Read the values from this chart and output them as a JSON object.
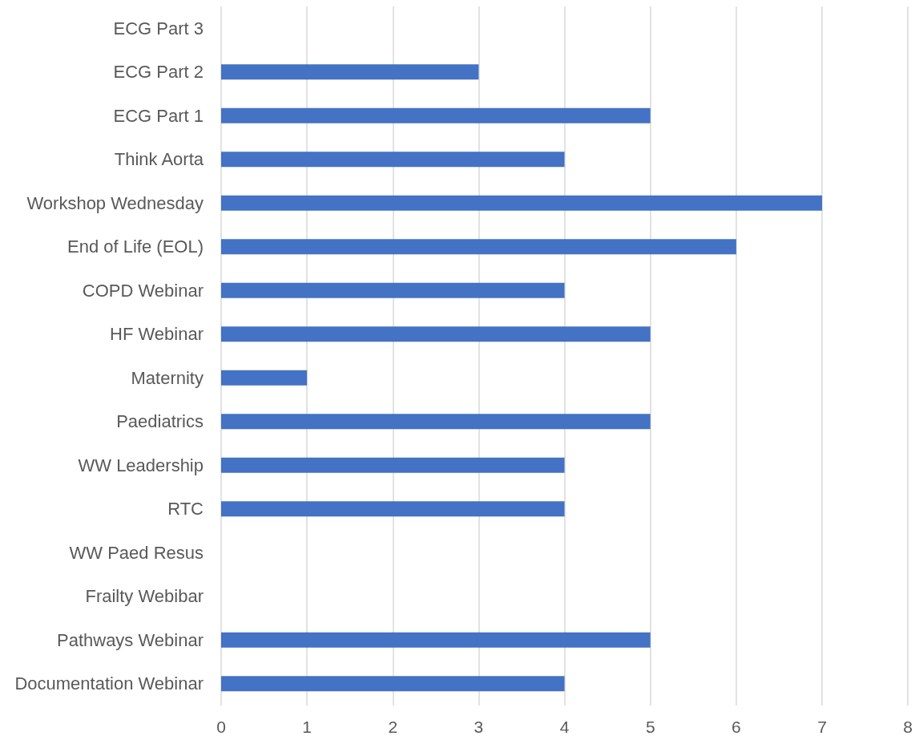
{
  "chart_data": {
    "type": "bar",
    "orientation": "horizontal",
    "categories": [
      "ECG Part 3",
      "ECG Part 2",
      "ECG Part 1",
      "Think Aorta",
      "Workshop Wednesday",
      "End of Life (EOL)",
      "COPD Webinar",
      "HF Webinar",
      "Maternity",
      "Paediatrics",
      "WW Leadership",
      "RTC",
      "WW Paed Resus",
      "Frailty Webibar",
      "Pathways Webinar",
      "Documentation Webinar"
    ],
    "values": [
      0,
      3,
      5,
      4,
      7,
      6,
      4,
      5,
      1,
      5,
      4,
      4,
      0,
      0,
      5,
      4
    ],
    "color": "#4472c4",
    "xlim": [
      0,
      8
    ],
    "xticks": [
      0,
      1,
      2,
      3,
      4,
      5,
      6,
      7,
      8
    ],
    "grid": "x"
  }
}
